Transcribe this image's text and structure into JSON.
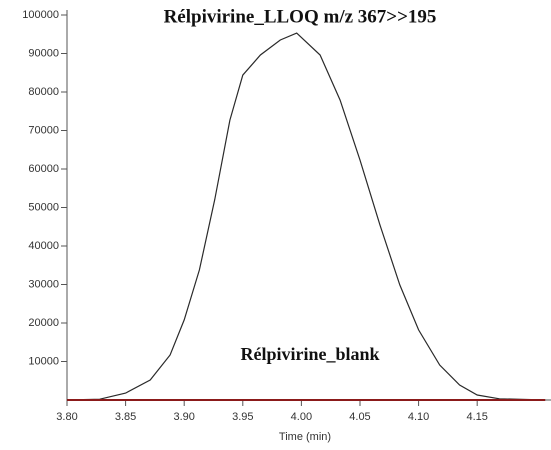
{
  "chart_data": {
    "type": "line",
    "title": "Rélpivirine_LLOQ  m/z 367>>195",
    "x_label": "Time (min)",
    "x": [
      3.8,
      3.828,
      3.85,
      3.871,
      3.888,
      3.9,
      3.913,
      3.926,
      3.939,
      3.95,
      3.965,
      3.982,
      3.996,
      4.016,
      4.033,
      4.05,
      4.067,
      4.084,
      4.1,
      4.118,
      4.135,
      4.15,
      4.169,
      4.208
    ],
    "series": [
      {
        "color": "#2a2a2a",
        "values": [
          0,
          200,
          1800,
          5200,
          11700,
          20800,
          33800,
          52000,
          72700,
          84400,
          89600,
          93500,
          95300,
          89600,
          77900,
          62300,
          45500,
          29900,
          18200,
          9100,
          3900,
          1300,
          300,
          0
        ]
      },
      {
        "name": "Rélpivirine_blank",
        "color": "#8b1a1a",
        "values": [
          0,
          0,
          0,
          0,
          0,
          0,
          0,
          0,
          0,
          0,
          0,
          0,
          0,
          0,
          0,
          0,
          0,
          0,
          0,
          0,
          0,
          0,
          0,
          0
        ]
      }
    ],
    "xlim": [
      3.8,
      4.21
    ],
    "ylim": [
      0,
      100000
    ],
    "xticks": [
      {
        "value": 3.8,
        "label": "3.80"
      },
      3.85,
      {
        "value": 3.9,
        "label": "3.90"
      },
      3.95,
      {
        "value": 4.0,
        "label": "4.00"
      },
      4.05,
      {
        "value": 4.1,
        "label": "4.10"
      },
      4.15
    ],
    "yticks": [
      10000,
      20000,
      30000,
      40000,
      50000,
      60000,
      70000,
      80000,
      90000,
      100000
    ]
  }
}
